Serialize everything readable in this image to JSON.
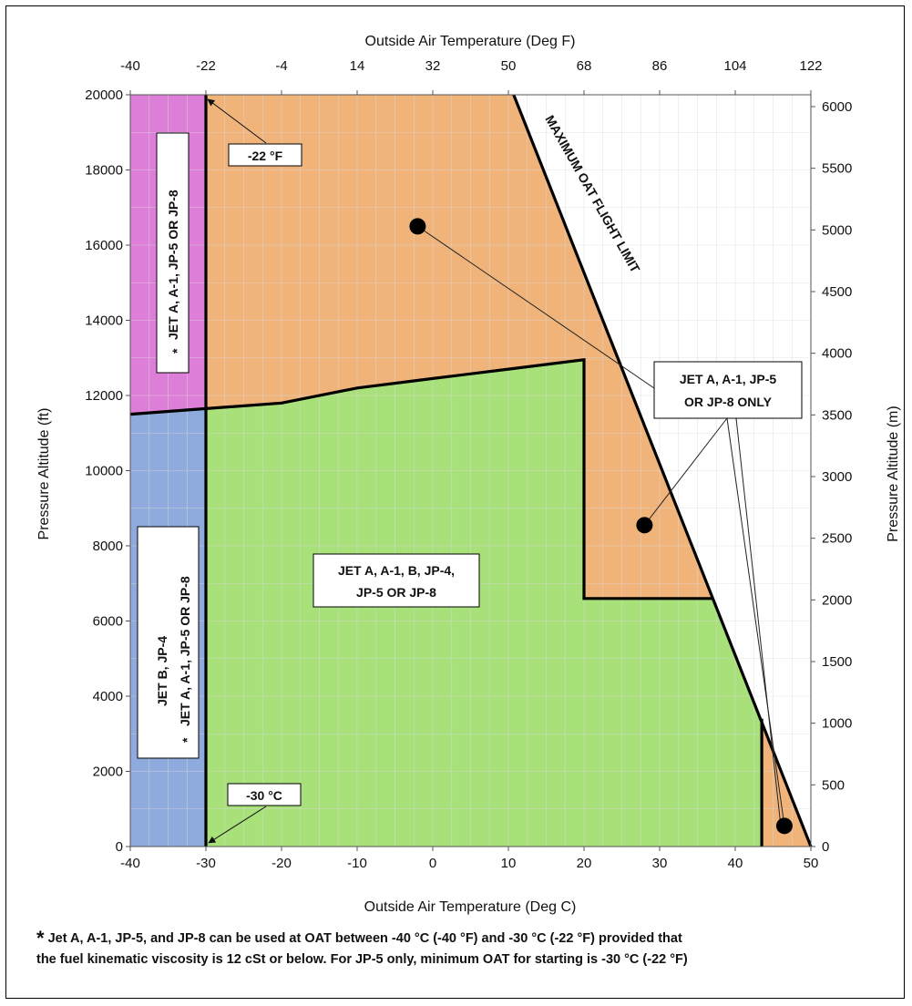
{
  "chart_data": {
    "type": "area",
    "x_bottom": {
      "label": "Outside Air Temperature (Deg C)",
      "min": -40,
      "max": 50,
      "ticks": [
        -40,
        -30,
        -20,
        -10,
        0,
        10,
        20,
        30,
        40,
        50
      ]
    },
    "x_top": {
      "label": "Outside Air Temperature (Deg F)",
      "ticks": [
        "-40",
        "-22",
        "-4",
        "14",
        "32",
        "50",
        "68",
        "86",
        "104",
        "122"
      ]
    },
    "y_left": {
      "label": "Pressure Altitude (ft)",
      "min": 0,
      "max": 20000,
      "ticks": [
        0,
        2000,
        4000,
        6000,
        8000,
        10000,
        12000,
        14000,
        16000,
        18000,
        20000
      ]
    },
    "y_right": {
      "label": "Pressure Altitude (m)",
      "min": 0,
      "max": 6096,
      "ticks": [
        0,
        500,
        1000,
        1500,
        2000,
        2500,
        3000,
        3500,
        4000,
        4500,
        5000,
        5500,
        6000
      ]
    },
    "grid": true,
    "colors": {
      "magenta": "#dd7fd8",
      "blue": "#8faadc",
      "orange": "#f0b47a",
      "green": "#a8e07a",
      "grid": "#d9d9d9"
    },
    "regions": [
      {
        "fill": "magenta",
        "points": [
          [
            -40,
            11500
          ],
          [
            -30,
            11650
          ],
          [
            -30,
            20000
          ],
          [
            -40,
            20000
          ]
        ]
      },
      {
        "fill": "blue",
        "points": [
          [
            -40,
            0
          ],
          [
            -30,
            0
          ],
          [
            -30,
            11650
          ],
          [
            -40,
            11500
          ]
        ]
      },
      {
        "fill": "orange",
        "points": [
          [
            -30,
            11650
          ],
          [
            -20,
            11800
          ],
          [
            -10,
            12200
          ],
          [
            0,
            12450
          ],
          [
            10,
            12700
          ],
          [
            20,
            12950
          ],
          [
            24.8,
            12950
          ],
          [
            10.7,
            20000
          ],
          [
            -30,
            20000
          ]
        ]
      },
      {
        "fill": "orange",
        "points": [
          [
            20,
            12950
          ],
          [
            24.8,
            12950
          ],
          [
            37,
            6600
          ],
          [
            20,
            6600
          ]
        ]
      },
      {
        "fill": "orange",
        "points": [
          [
            43.5,
            0
          ],
          [
            50,
            0
          ],
          [
            43.5,
            3400
          ]
        ]
      },
      {
        "fill": "green",
        "points": [
          [
            -30,
            0
          ],
          [
            43.5,
            0
          ],
          [
            43.5,
            3400
          ],
          [
            37,
            6600
          ],
          [
            20,
            6600
          ],
          [
            20,
            12950
          ],
          [
            10,
            12700
          ],
          [
            0,
            12450
          ],
          [
            -10,
            12200
          ],
          [
            -20,
            11800
          ],
          [
            -30,
            11650
          ]
        ]
      }
    ],
    "boundaries": [
      {
        "name": "limit-line",
        "points": [
          [
            10.7,
            20000
          ],
          [
            50,
            0
          ]
        ]
      },
      {
        "name": "lower-boundary",
        "points": [
          [
            -40,
            11500
          ],
          [
            -30,
            11650
          ],
          [
            -20,
            11800
          ],
          [
            -10,
            12200
          ],
          [
            0,
            12450
          ],
          [
            10,
            12700
          ],
          [
            20,
            12950
          ],
          [
            20,
            6600
          ],
          [
            37,
            6600
          ]
        ]
      },
      {
        "name": "cold-limit",
        "points": [
          [
            -30,
            0
          ],
          [
            -30,
            20000
          ]
        ]
      },
      {
        "name": "small-region-edge",
        "points": [
          [
            43.5,
            0
          ],
          [
            43.5,
            3400
          ]
        ]
      }
    ],
    "markers": [
      [
        -2,
        16500
      ],
      [
        28,
        8550
      ],
      [
        46.5,
        550
      ]
    ],
    "annotations": {
      "limit_label": "MAXIMUM OAT FLIGHT LIMIT",
      "f_callout": "-22 °F",
      "c_callout": "-30 °C",
      "green_region": [
        "JET A, A-1, B, JP-4,",
        "JP-5 OR JP-8"
      ],
      "orange_region": [
        "JET A, A-1, JP-5",
        "OR JP-8 ONLY"
      ],
      "magenta_region": "JET A, A-1, JP-5 OR JP-8",
      "blue_region_title": "JET B, JP-4",
      "blue_region_sub": "JET A, A-1, JP-5 OR JP-8",
      "star": "*"
    }
  },
  "footnote": {
    "star": "*",
    "line1": "Jet A, A-1, JP-5, and JP-8 can be used at OAT between -40 °C (-40 °F) and -30 °C (-22 °F) provided that",
    "line2": "the fuel kinematic viscosity is 12 cSt or below.  For JP-5 only, minimum OAT for starting is -30 °C (-22 °F)"
  }
}
